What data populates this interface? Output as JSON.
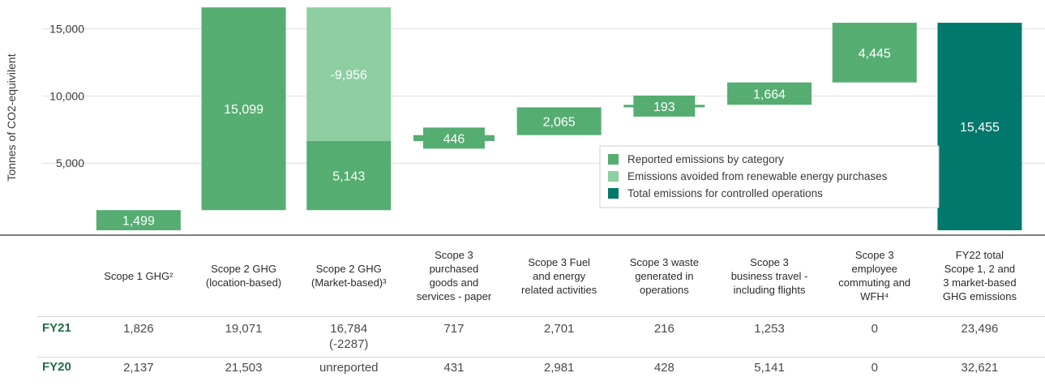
{
  "chart_data": {
    "type": "waterfall",
    "ylabel": "Tonnes of CO2-equivilent",
    "ytick_labels": [
      "5,000",
      "10,000",
      "15,000"
    ],
    "ytick_values": [
      5000,
      10000,
      15000
    ],
    "ylim": [
      0,
      16500
    ],
    "grid": true,
    "legend_position": "center-right",
    "colors": {
      "reported": "#55ad72",
      "avoided": "#8dcfa0",
      "total": "#00786b"
    },
    "legend": [
      {
        "key": "reported",
        "label": "Reported emissions by category"
      },
      {
        "key": "avoided",
        "label": "Emissions avoided from renewable energy purchases"
      },
      {
        "key": "total",
        "label": "Total emissions for controlled operations"
      }
    ],
    "bars": [
      {
        "category": "Scope 1 GHG",
        "start": 0,
        "end": 1499,
        "label": "1,499",
        "kind": "reported"
      },
      {
        "category": "Scope 2 GHG (location-based)",
        "start": 1499,
        "end": 16598,
        "label": "15,099",
        "kind": "reported"
      },
      {
        "category": "Scope 2 GHG (Market-based)",
        "start": 1499,
        "end": 6642,
        "label": "5,143",
        "kind": "reported",
        "stack": {
          "start": 6642,
          "end": 16598,
          "label": "-9,956",
          "kind": "avoided"
        }
      },
      {
        "category": "Scope 3 purchased goods and services - paper",
        "start": 6642,
        "end": 7088,
        "label": "446",
        "kind": "reported"
      },
      {
        "category": "Scope 3 Fuel and energy related activities",
        "start": 7088,
        "end": 9153,
        "label": "2,065",
        "kind": "reported"
      },
      {
        "category": "Scope 3 waste generated in operations",
        "start": 9153,
        "end": 9346,
        "label": "193",
        "kind": "reported"
      },
      {
        "category": "Scope 3 business travel - including flights",
        "start": 9346,
        "end": 11010,
        "label": "1,664",
        "kind": "reported"
      },
      {
        "category": "Scope 3 employee commuting and WFH",
        "start": 11010,
        "end": 15455,
        "label": "4,445",
        "kind": "reported"
      },
      {
        "category": "FY22 total Scope 1, 2 and 3 market-based GHG emissions",
        "start": 0,
        "end": 15455,
        "label": "15,455",
        "kind": "total"
      }
    ]
  },
  "table": {
    "headers": [
      [
        "Scope 1 GHG²"
      ],
      [
        "Scope 2 GHG",
        "(location-based)"
      ],
      [
        "Scope 2 GHG",
        "(Market-based)³"
      ],
      [
        "Scope 3",
        "purchased",
        "goods and",
        "services - paper"
      ],
      [
        "Scope 3 Fuel",
        "and energy",
        "related activities"
      ],
      [
        "Scope 3 waste",
        "generated in",
        "operations"
      ],
      [
        "Scope 3",
        "business travel -",
        "including flights"
      ],
      [
        "Scope 3",
        "employee",
        "commuting and",
        "WFH⁴"
      ],
      [
        "FY22 total",
        "Scope 1, 2 and",
        "3 market-based",
        "GHG emissions"
      ]
    ],
    "rows": [
      {
        "label": "FY21",
        "values": [
          [
            "1,826"
          ],
          [
            "19,071"
          ],
          [
            "16,784",
            "(-2287)"
          ],
          [
            "717"
          ],
          [
            "2,701"
          ],
          [
            "216"
          ],
          [
            "1,253"
          ],
          [
            "0"
          ],
          [
            "23,496"
          ]
        ]
      },
      {
        "label": "FY20",
        "values": [
          [
            "2,137"
          ],
          [
            "21,503"
          ],
          [
            "unreported"
          ],
          [
            "431"
          ],
          [
            "2,981"
          ],
          [
            "428"
          ],
          [
            "5,141"
          ],
          [
            "0"
          ],
          [
            "32,621"
          ]
        ]
      }
    ]
  }
}
